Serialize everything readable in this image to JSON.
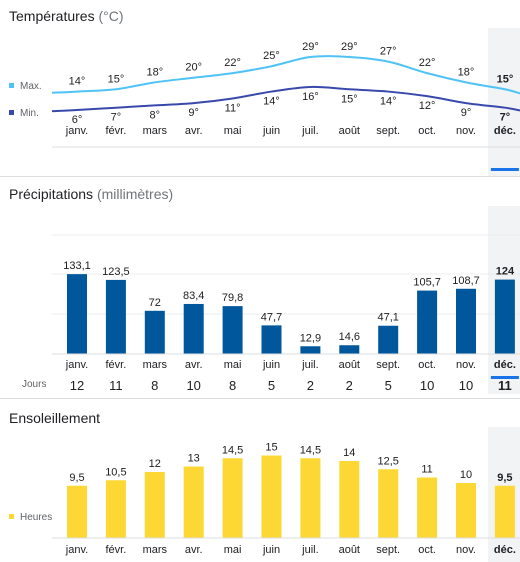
{
  "months": [
    "janv.",
    "févr.",
    "mars",
    "avr.",
    "mai",
    "juin",
    "juil.",
    "août",
    "sept.",
    "oct.",
    "nov.",
    "déc."
  ],
  "selected_index": 11,
  "colors": {
    "max": "#4fc3f7",
    "min": "#3949ab",
    "rain": "#01579b",
    "sun": "#fdd835",
    "selected": "#f1f3f4",
    "accent": "#1a73e8"
  },
  "temperatures": {
    "title": "Températures",
    "unit": "(°C)",
    "legend_max": "Max.",
    "legend_min": "Min."
  },
  "precipitation": {
    "title": "Précipitations",
    "unit": "(millimètres)",
    "days_label": "Jours"
  },
  "sunshine": {
    "title": "Ensoleillement",
    "legend": "Heures"
  },
  "chart_data": [
    {
      "type": "line",
      "title": "Températures",
      "categories": [
        "janv.",
        "févr.",
        "mars",
        "avr.",
        "mai",
        "juin",
        "juil.",
        "août",
        "sept.",
        "oct.",
        "nov.",
        "déc."
      ],
      "series": [
        {
          "name": "Max.",
          "values": [
            14,
            15,
            18,
            20,
            22,
            25,
            29,
            29,
            27,
            22,
            18,
            15
          ],
          "labels": [
            "14°",
            "15°",
            "18°",
            "20°",
            "22°",
            "25°",
            "29°",
            "29°",
            "27°",
            "22°",
            "18°",
            "15°"
          ]
        },
        {
          "name": "Min.",
          "values": [
            6,
            7,
            8,
            9,
            11,
            14,
            16,
            15,
            14,
            12,
            9,
            7
          ],
          "labels": [
            "6°",
            "7°",
            "8°",
            "9°",
            "11°",
            "14°",
            "16°",
            "15°",
            "14°",
            "12°",
            "9°",
            "7°"
          ]
        }
      ]
    },
    {
      "type": "bar",
      "title": "Précipitations",
      "categories": [
        "janv.",
        "févr.",
        "mars",
        "avr.",
        "mai",
        "juin",
        "juil.",
        "août",
        "sept.",
        "oct.",
        "nov.",
        "déc."
      ],
      "values": [
        133.1,
        123.5,
        72,
        83.4,
        79.8,
        47.7,
        12.9,
        14.6,
        47.1,
        105.7,
        108.7,
        124
      ],
      "labels": [
        "133,1",
        "123,5",
        "72",
        "83,4",
        "79,8",
        "47,7",
        "12,9",
        "14,6",
        "47,1",
        "105,7",
        "108,7",
        "124"
      ],
      "days": [
        12,
        11,
        8,
        10,
        8,
        5,
        2,
        2,
        5,
        10,
        10,
        11
      ],
      "ylim": [
        0,
        200
      ]
    },
    {
      "type": "bar",
      "title": "Ensoleillement",
      "categories": [
        "janv.",
        "févr.",
        "mars",
        "avr.",
        "mai",
        "juin",
        "juil.",
        "août",
        "sept.",
        "oct.",
        "nov.",
        "déc."
      ],
      "values": [
        9.5,
        10.5,
        12,
        13,
        14.5,
        15,
        14.5,
        14,
        12.5,
        11,
        10,
        9.5
      ],
      "labels": [
        "9,5",
        "10,5",
        "12",
        "13",
        "14,5",
        "15",
        "14,5",
        "14",
        "12,5",
        "11",
        "10",
        "9,5"
      ]
    }
  ]
}
